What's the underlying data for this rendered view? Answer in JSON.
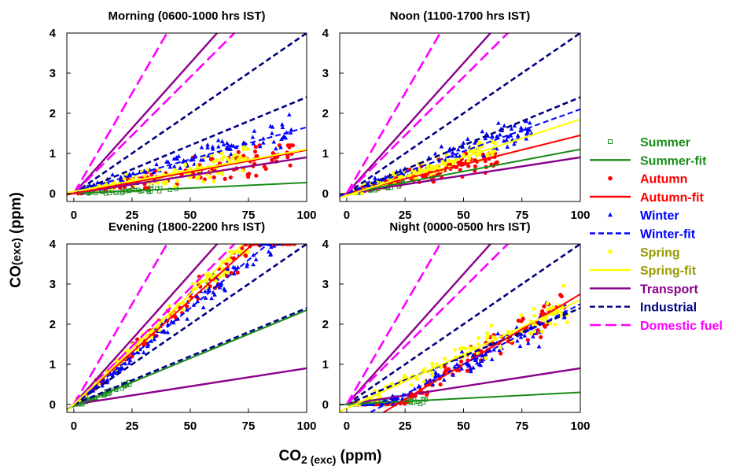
{
  "figure": {
    "ylabel_main": "CO",
    "ylabel_sub": "(exc)",
    "ylabel_unit": " (ppm)",
    "xlabel_main": "CO",
    "xlabel_sub": "2 (exc)",
    "xlabel_unit": " (ppm)"
  },
  "chart_data": [
    {
      "type": "scatter",
      "title": "Morning (0600-1000 hrs IST)",
      "xlim": [
        -3,
        100
      ],
      "ylim": [
        -0.2,
        4
      ],
      "xticks": [
        "0",
        "25",
        "50",
        "75",
        "100"
      ],
      "yticks": [
        "0",
        "1",
        "2",
        "3",
        "4"
      ],
      "series": [
        {
          "name": "Summer",
          "marker": "square",
          "cluster": {
            "xmax": 45,
            "ymax": 0.3
          }
        },
        {
          "name": "Autumn",
          "marker": "circle",
          "cluster": {
            "xmax": 95,
            "ymax": 1.2
          }
        },
        {
          "name": "Winter",
          "marker": "triangle",
          "cluster": {
            "xmax": 95,
            "ymax": 2.3
          }
        },
        {
          "name": "Spring",
          "marker": "circle",
          "cluster": {
            "xmax": 75,
            "ymax": 1.4
          }
        }
      ],
      "fits": [
        {
          "name": "Summer-fit",
          "intercept": 0.0,
          "slope": 0.0027
        },
        {
          "name": "Autumn-fit",
          "intercept": 0.0,
          "slope": 0.0108
        },
        {
          "name": "Winter-fit",
          "intercept": 0.05,
          "slope": 0.016
        },
        {
          "name": "Spring-fit",
          "intercept": 0.05,
          "slope": 0.0105
        }
      ],
      "reference_lines": [
        {
          "name": "Transport",
          "slopes": [
            0.009,
            0.065
          ]
        },
        {
          "name": "Industrial",
          "slopes": [
            0.024,
            0.04
          ]
        },
        {
          "name": "Domestic fuel",
          "slopes": [
            0.058,
            0.1
          ]
        }
      ]
    },
    {
      "type": "scatter",
      "title": "Noon (1100-1700 hrs IST)",
      "xlim": [
        -3,
        100
      ],
      "ylim": [
        -0.2,
        4
      ],
      "xticks": [
        "0",
        "25",
        "50",
        "75",
        "100"
      ],
      "yticks": [
        "0",
        "1",
        "2",
        "3",
        "4"
      ],
      "series": [
        {
          "name": "Summer",
          "marker": "square",
          "cluster": {
            "xmax": 25,
            "ymax": 0.4
          }
        },
        {
          "name": "Autumn",
          "marker": "circle",
          "cluster": {
            "xmax": 65,
            "ymax": 1.0
          }
        },
        {
          "name": "Winter",
          "marker": "triangle",
          "cluster": {
            "xmax": 80,
            "ymax": 1.8
          }
        },
        {
          "name": "Spring",
          "marker": "circle",
          "cluster": {
            "xmax": 65,
            "ymax": 1.3
          }
        }
      ],
      "fits": [
        {
          "name": "Summer-fit",
          "intercept": 0.0,
          "slope": 0.011
        },
        {
          "name": "Autumn-fit",
          "intercept": 0.0,
          "slope": 0.0145
        },
        {
          "name": "Winter-fit",
          "intercept": 0.0,
          "slope": 0.021
        },
        {
          "name": "Spring-fit",
          "intercept": -0.05,
          "slope": 0.019
        }
      ],
      "reference_lines": [
        {
          "name": "Transport",
          "slopes": [
            0.009,
            0.065
          ]
        },
        {
          "name": "Industrial",
          "slopes": [
            0.024,
            0.04
          ]
        },
        {
          "name": "Domestic fuel",
          "slopes": [
            0.058,
            0.1
          ]
        }
      ]
    },
    {
      "type": "scatter",
      "title": "Evening (1800-2200 hrs IST)",
      "xlim": [
        -3,
        100
      ],
      "ylim": [
        -0.2,
        4
      ],
      "xticks": [
        "0",
        "25",
        "50",
        "75",
        "100"
      ],
      "yticks": [
        "0",
        "1",
        "2",
        "3",
        "4"
      ],
      "series": [
        {
          "name": "Summer",
          "marker": "square",
          "cluster": {
            "xmax": 25,
            "ymax": 1.0
          }
        },
        {
          "name": "Autumn",
          "marker": "circle",
          "cluster": {
            "xmax": 95,
            "ymax": 4.0
          }
        },
        {
          "name": "Winter",
          "marker": "triangle",
          "cluster": {
            "xmax": 90,
            "ymax": 4.0
          }
        },
        {
          "name": "Spring",
          "marker": "circle",
          "cluster": {
            "xmax": 75,
            "ymax": 3.8
          }
        }
      ],
      "fits": [
        {
          "name": "Summer-fit",
          "intercept": -0.05,
          "slope": 0.024
        },
        {
          "name": "Autumn-fit",
          "intercept": 0.0,
          "slope": 0.052
        },
        {
          "name": "Winter-fit",
          "intercept": 0.0,
          "slope": 0.048
        },
        {
          "name": "Spring-fit",
          "intercept": 0.0,
          "slope": 0.055
        }
      ],
      "reference_lines": [
        {
          "name": "Transport",
          "slopes": [
            0.009,
            0.065
          ]
        },
        {
          "name": "Industrial",
          "slopes": [
            0.024,
            0.04
          ]
        },
        {
          "name": "Domestic fuel",
          "slopes": [
            0.058,
            0.1
          ]
        }
      ]
    },
    {
      "type": "scatter",
      "title": "Night (0000-0500 hrs IST)",
      "xlim": [
        -3,
        100
      ],
      "ylim": [
        -0.2,
        4
      ],
      "xticks": [
        "0",
        "25",
        "50",
        "75",
        "100"
      ],
      "yticks": [
        "0",
        "1",
        "2",
        "3",
        "4"
      ],
      "series": [
        {
          "name": "Summer",
          "marker": "square",
          "cluster": {
            "xmax": 35,
            "ymax": 0.5
          }
        },
        {
          "name": "Autumn",
          "marker": "circle",
          "cluster": {
            "xmax": 95,
            "ymax": 3.5
          }
        },
        {
          "name": "Winter",
          "marker": "triangle",
          "cluster": {
            "xmax": 95,
            "ymax": 3.6
          }
        },
        {
          "name": "Spring",
          "marker": "circle",
          "cluster": {
            "xmax": 95,
            "ymax": 3.5
          }
        }
      ],
      "fits": [
        {
          "name": "Summer-fit",
          "intercept": 0.0,
          "slope": 0.003
        },
        {
          "name": "Autumn-fit",
          "intercept": -0.75,
          "slope": 0.035
        },
        {
          "name": "Winter-fit",
          "intercept": -0.5,
          "slope": 0.03
        },
        {
          "name": "Spring-fit",
          "intercept": -0.1,
          "slope": 0.027
        }
      ],
      "reference_lines": [
        {
          "name": "Transport",
          "slopes": [
            0.009,
            0.065
          ]
        },
        {
          "name": "Industrial",
          "slopes": [
            0.024,
            0.04
          ]
        },
        {
          "name": "Domestic fuel",
          "slopes": [
            0.058,
            0.1
          ]
        }
      ]
    }
  ],
  "legend": {
    "placement": "right",
    "items": [
      {
        "label": "Summer",
        "kind": "marker",
        "shape": "square",
        "color": "#1a8c1a",
        "text_color": "#1a8c1a"
      },
      {
        "label": "Summer-fit",
        "kind": "line",
        "dash": "solid",
        "color": "#1a8c1a",
        "text_color": "#1a8c1a"
      },
      {
        "label": "Autumn",
        "kind": "marker",
        "shape": "circle",
        "color": "#ff0000",
        "text_color": "#ff0000"
      },
      {
        "label": "Autumn-fit",
        "kind": "line",
        "dash": "solid",
        "color": "#ff0000",
        "text_color": "#ff0000"
      },
      {
        "label": "Winter",
        "kind": "marker",
        "shape": "triangle",
        "color": "#0000ff",
        "text_color": "#0000ff"
      },
      {
        "label": "Winter-fit",
        "kind": "line",
        "dash": "dashed",
        "color": "#0000ff",
        "text_color": "#0000ff"
      },
      {
        "label": "Spring",
        "kind": "marker",
        "shape": "circle",
        "color": "#ffff00",
        "text_color": "#999900"
      },
      {
        "label": "Spring-fit",
        "kind": "line",
        "dash": "solid",
        "color": "#ffff00",
        "text_color": "#999900"
      },
      {
        "label": "Transport",
        "kind": "line",
        "dash": "solid",
        "color": "#8b008b",
        "text_color": "#8b008b"
      },
      {
        "label": "Industrial",
        "kind": "line",
        "dash": "dashed",
        "color": "#000080",
        "text_color": "#000080"
      },
      {
        "label": "Domestic fuel",
        "kind": "line",
        "dash": "longdash",
        "color": "#ff00ff",
        "text_color": "#ff00ff"
      }
    ]
  }
}
